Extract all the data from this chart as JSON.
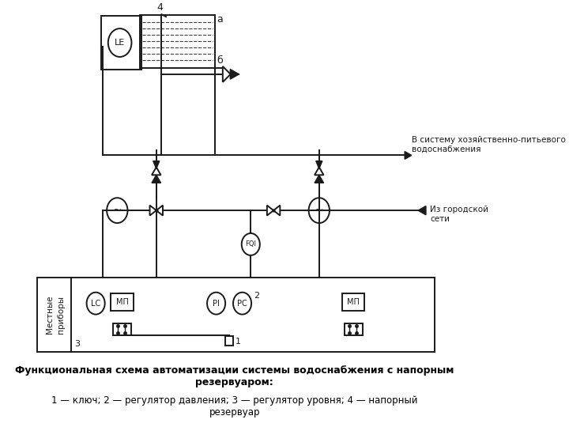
{
  "title_bold": "Функциональная схема автоматизации системы водоснабжения с напорным\nрезервуаром:",
  "caption": "1 — ключ; 2 — регулятор давления; 3 — регулятор уровня; 4 — напорный\nрезервуар",
  "label_city": "Из городской\nсети",
  "label_system": "В систему хозяйственно-питьевого\nводоснабжения",
  "label_local": "Местные\nприборы",
  "label_4": "4",
  "label_a": "a",
  "label_b": "б",
  "label_LE": "LE",
  "label_LC": "LC",
  "label_MP1": "МП",
  "label_MP2": "МП",
  "label_PI": "PI",
  "label_PC": "PC",
  "label_FQI": "FQI",
  "label_1": "1",
  "label_2": "2",
  "label_3": "3",
  "bg_color": "#ffffff",
  "line_color": "#1a1a1a"
}
